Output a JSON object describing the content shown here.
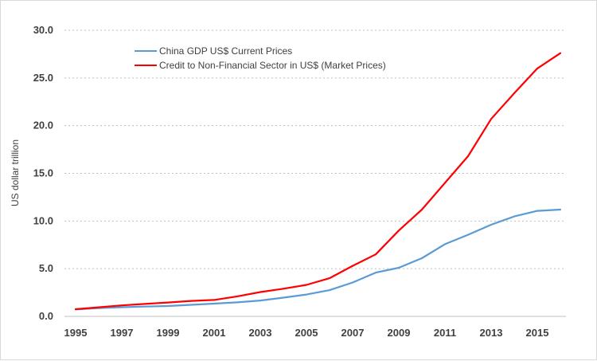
{
  "chart_data": {
    "type": "line",
    "title": "",
    "xlabel": "",
    "ylabel": "US dollar trillion",
    "ylim": [
      0,
      30
    ],
    "xlim": [
      1995,
      2016
    ],
    "grid": true,
    "legend_position": "top-left",
    "x": [
      1995,
      1996,
      1997,
      1998,
      1999,
      2000,
      2001,
      2002,
      2003,
      2004,
      2005,
      2006,
      2007,
      2008,
      2009,
      2010,
      2011,
      2012,
      2013,
      2014,
      2015,
      2016
    ],
    "y_ticks": [
      "0.0",
      "5.0",
      "10.0",
      "15.0",
      "20.0",
      "25.0",
      "30.0"
    ],
    "x_ticks": [
      "1995",
      "1997",
      "1999",
      "2001",
      "2003",
      "2005",
      "2007",
      "2009",
      "2011",
      "2013",
      "2015"
    ],
    "series": [
      {
        "name": "China GDP US$ Current Prices",
        "color": "#5b9bd5",
        "values": [
          0.73,
          0.86,
          0.96,
          1.03,
          1.09,
          1.21,
          1.34,
          1.47,
          1.66,
          1.96,
          2.29,
          2.75,
          3.55,
          4.59,
          5.1,
          6.1,
          7.57,
          8.56,
          9.61,
          10.48,
          11.06,
          11.2
        ]
      },
      {
        "name": "Credit to Non-Financial Sector in US$ (Market Prices)",
        "color": "#ff0000",
        "values": [
          0.75,
          0.95,
          1.15,
          1.3,
          1.45,
          1.62,
          1.72,
          2.1,
          2.55,
          2.9,
          3.3,
          4.0,
          5.3,
          6.5,
          9.0,
          11.2,
          14.0,
          16.8,
          20.7,
          23.4,
          26.0,
          27.6
        ]
      }
    ]
  }
}
